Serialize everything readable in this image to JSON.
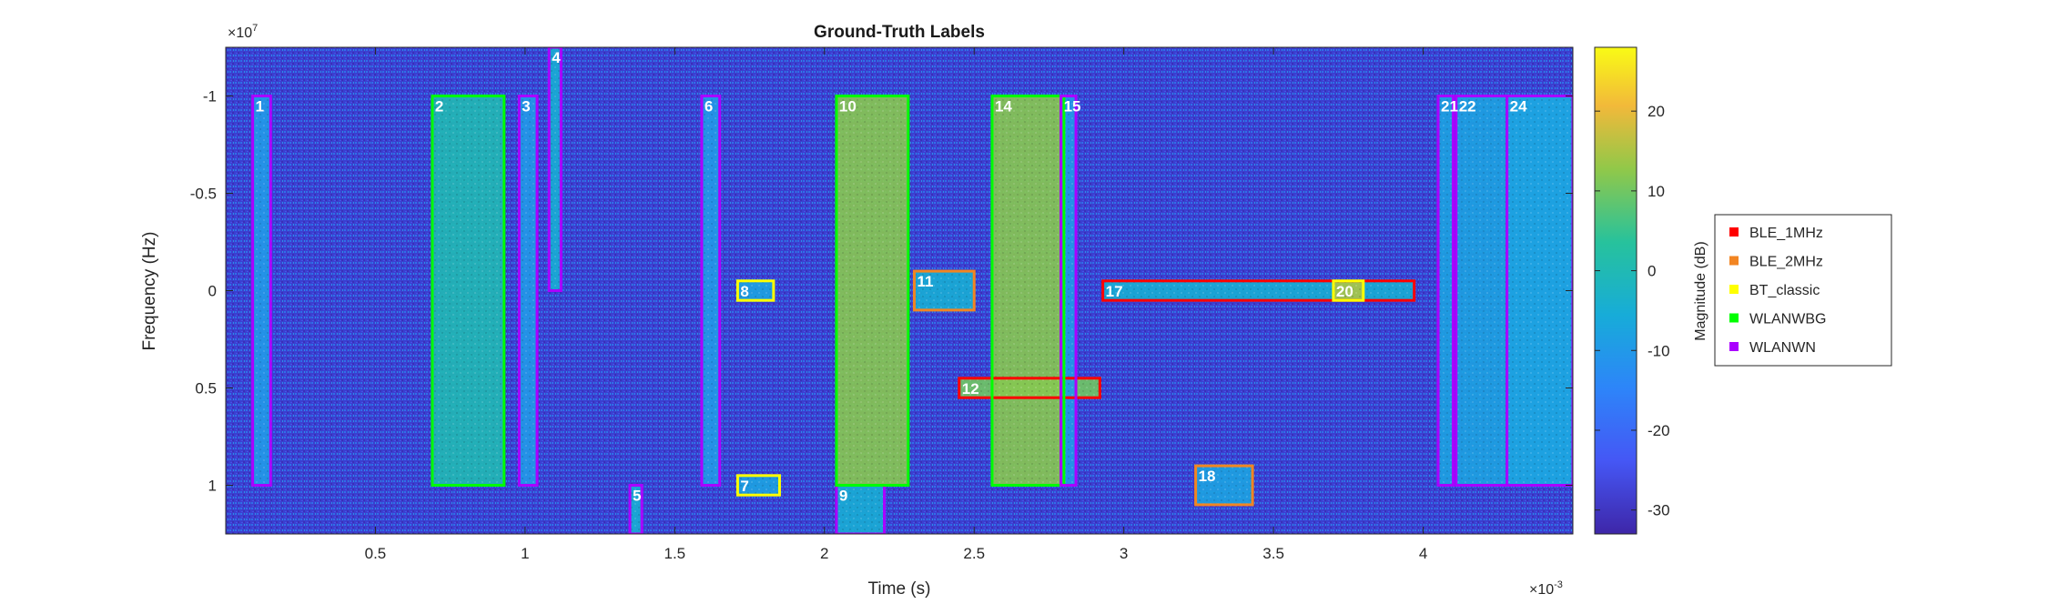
{
  "chart_data": {
    "type": "heatmap",
    "title": "Ground-Truth Labels",
    "xlabel": "Time (s)",
    "ylabel": "Frequency (Hz)",
    "x_exponent_label": "×10",
    "x_exponent_power": "-3",
    "y_exponent_label": "×10",
    "y_exponent_power": "7",
    "xlim": [
      0,
      4.5
    ],
    "ylim_bottom_to_top": [
      1.25,
      -1.25
    ],
    "x_ticks": [
      0.5,
      1,
      1.5,
      2,
      2.5,
      3,
      3.5,
      4
    ],
    "x_tick_labels": [
      "0.5",
      "1",
      "1.5",
      "2",
      "2.5",
      "3",
      "3.5",
      "4"
    ],
    "y_ticks": [
      -1,
      -0.5,
      0,
      0.5,
      1
    ],
    "y_tick_labels": [
      "-1",
      "-0.5",
      "0",
      "0.5",
      "1"
    ],
    "colorbar": {
      "label": "Magnitude (dB)",
      "range": [
        -33,
        28
      ],
      "ticks": [
        20,
        10,
        0,
        -10,
        -20,
        -30
      ],
      "tick_labels": [
        "20",
        "10",
        "0",
        "-10",
        "-20",
        "-30"
      ],
      "colormap": "parula"
    },
    "background_color": "#3d3bd4",
    "legend": {
      "placement": "outside-right",
      "entries": [
        {
          "name": "BLE_1MHz",
          "color": "#ff0000"
        },
        {
          "name": "BLE_2MHz",
          "color": "#f28522"
        },
        {
          "name": "BT_classic",
          "color": "#ffff00"
        },
        {
          "name": "WLANWBG",
          "color": "#00ff00"
        },
        {
          "name": "WLANWN",
          "color": "#aa00ff"
        }
      ]
    },
    "signals": [
      {
        "label": "1",
        "class": "WLANWN",
        "t0": 0.09,
        "t1": 0.15,
        "f0": -1.0,
        "f1": 1.0,
        "magnitude_db": -10
      },
      {
        "label": "2",
        "class": "WLANWBG",
        "t0": 0.69,
        "t1": 0.93,
        "f0": -1.0,
        "f1": 1.0,
        "magnitude_db": 0
      },
      {
        "label": "3",
        "class": "WLANWN",
        "t0": 0.98,
        "t1": 1.04,
        "f0": -1.0,
        "f1": 1.0,
        "magnitude_db": -10
      },
      {
        "label": "4",
        "class": "WLANWN",
        "t0": 1.08,
        "t1": 1.12,
        "f0": -1.25,
        "f1": 0.0,
        "magnitude_db": -5
      },
      {
        "label": "5",
        "class": "WLANWN",
        "t0": 1.35,
        "t1": 1.39,
        "f0": 1.0,
        "f1": 1.25,
        "magnitude_db": -5
      },
      {
        "label": "6",
        "class": "WLANWN",
        "t0": 1.59,
        "t1": 1.65,
        "f0": -1.0,
        "f1": 1.0,
        "magnitude_db": -10
      },
      {
        "label": "7",
        "class": "BT_classic",
        "t0": 1.71,
        "t1": 1.85,
        "f0": 0.95,
        "f1": 1.05,
        "magnitude_db": -8
      },
      {
        "label": "8",
        "class": "BT_classic",
        "t0": 1.71,
        "t1": 1.83,
        "f0": -0.05,
        "f1": 0.05,
        "magnitude_db": -8
      },
      {
        "label": "9",
        "class": "WLANWN",
        "t0": 2.04,
        "t1": 2.2,
        "f0": 1.0,
        "f1": 1.25,
        "magnitude_db": -5
      },
      {
        "label": "10",
        "class": "WLANWBG",
        "t0": 2.04,
        "t1": 2.28,
        "f0": -1.0,
        "f1": 1.0,
        "magnitude_db": 12
      },
      {
        "label": "11",
        "class": "BLE_2MHz",
        "t0": 2.3,
        "t1": 2.5,
        "f0": -0.1,
        "f1": 0.1,
        "magnitude_db": -5
      },
      {
        "label": "12",
        "class": "BLE_1MHz",
        "t0": 2.45,
        "t1": 2.92,
        "f0": 0.45,
        "f1": 0.55,
        "magnitude_db": 10
      },
      {
        "label": "14",
        "class": "WLANWBG",
        "t0": 2.56,
        "t1": 2.8,
        "f0": -1.0,
        "f1": 1.0,
        "magnitude_db": 12
      },
      {
        "label": "15",
        "class": "WLANWN",
        "t0": 2.79,
        "t1": 2.84,
        "f0": -1.0,
        "f1": 1.0,
        "magnitude_db": -10
      },
      {
        "label": "17",
        "class": "BLE_1MHz",
        "t0": 2.93,
        "t1": 3.97,
        "f0": -0.05,
        "f1": 0.05,
        "magnitude_db": -5
      },
      {
        "label": "18",
        "class": "BLE_2MHz",
        "t0": 3.24,
        "t1": 3.43,
        "f0": 0.9,
        "f1": 1.1,
        "magnitude_db": -8
      },
      {
        "label": "20",
        "class": "BT_classic",
        "t0": 3.7,
        "t1": 3.8,
        "f0": -0.05,
        "f1": 0.05,
        "magnitude_db": 15
      },
      {
        "label": "21",
        "class": "WLANWN",
        "t0": 4.05,
        "t1": 4.1,
        "f0": -1.0,
        "f1": 1.0,
        "magnitude_db": -8
      },
      {
        "label": "22",
        "class": "WLANWN",
        "t0": 4.11,
        "t1": 4.5,
        "f0": -1.0,
        "f1": 1.0,
        "magnitude_db": -8
      },
      {
        "label": "24",
        "class": "WLANWN",
        "t0": 4.28,
        "t1": 4.5,
        "f0": -1.0,
        "f1": 1.0,
        "magnitude_db": -8
      }
    ]
  }
}
